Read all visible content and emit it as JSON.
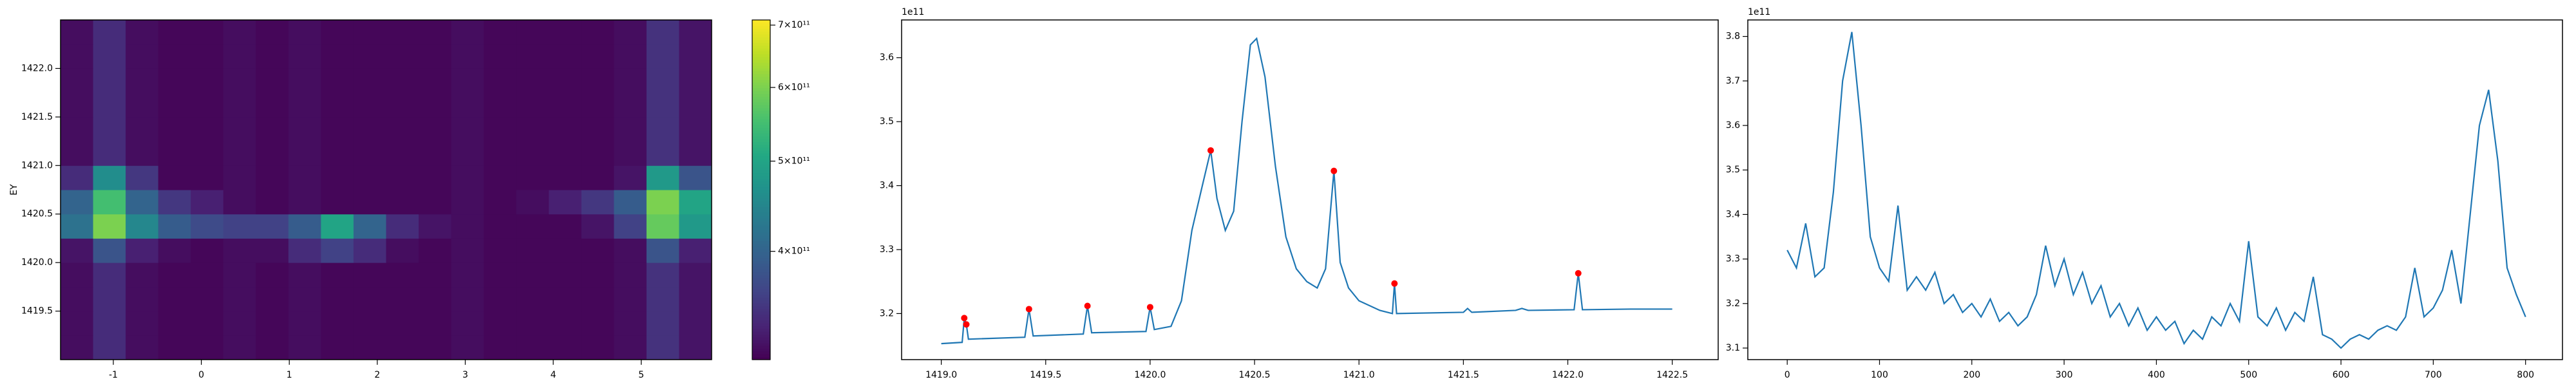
{
  "chart_data": [
    {
      "type": "heatmap",
      "ylabel": "EY",
      "xbins": [
        -1.6,
        -1.23,
        -0.86,
        -0.49,
        -0.12,
        0.25,
        0.62,
        0.99,
        1.36,
        1.73,
        2.1,
        2.47,
        2.84,
        3.21,
        3.58,
        3.95,
        4.32,
        4.69,
        5.06,
        5.43,
        5.8
      ],
      "ybins": [
        1419.0,
        1419.25,
        1419.5,
        1419.75,
        1420.0,
        1420.25,
        1420.5,
        1420.75,
        1421.0,
        1421.25,
        1421.5,
        1421.75,
        1422.0,
        1422.25,
        1422.5
      ],
      "z": [
        [
          315000000000.0,
          340000000000.0,
          315000000000.0,
          310000000000.0,
          310000000000.0,
          315000000000.0,
          310000000000.0,
          315000000000.0,
          310000000000.0,
          310000000000.0,
          310000000000.0,
          310000000000.0,
          315000000000.0,
          310000000000.0,
          310000000000.0,
          310000000000.0,
          310000000000.0,
          315000000000.0,
          345000000000.0,
          320000000000.0
        ],
        [
          315000000000.0,
          340000000000.0,
          315000000000.0,
          310000000000.0,
          310000000000.0,
          315000000000.0,
          310000000000.0,
          315000000000.0,
          310000000000.0,
          310000000000.0,
          310000000000.0,
          310000000000.0,
          315000000000.0,
          310000000000.0,
          310000000000.0,
          310000000000.0,
          310000000000.0,
          315000000000.0,
          345000000000.0,
          320000000000.0
        ],
        [
          315000000000.0,
          340000000000.0,
          315000000000.0,
          310000000000.0,
          310000000000.0,
          315000000000.0,
          310000000000.0,
          315000000000.0,
          310000000000.0,
          310000000000.0,
          310000000000.0,
          310000000000.0,
          315000000000.0,
          310000000000.0,
          310000000000.0,
          310000000000.0,
          310000000000.0,
          315000000000.0,
          345000000000.0,
          320000000000.0
        ],
        [
          315000000000.0,
          340000000000.0,
          315000000000.0,
          310000000000.0,
          310000000000.0,
          315000000000.0,
          310000000000.0,
          315000000000.0,
          310000000000.0,
          310000000000.0,
          310000000000.0,
          310000000000.0,
          315000000000.0,
          310000000000.0,
          310000000000.0,
          310000000000.0,
          310000000000.0,
          315000000000.0,
          345000000000.0,
          320000000000.0
        ],
        [
          320000000000.0,
          380000000000.0,
          330000000000.0,
          315000000000.0,
          310000000000.0,
          315000000000.0,
          315000000000.0,
          340000000000.0,
          360000000000.0,
          340000000000.0,
          315000000000.0,
          310000000000.0,
          315000000000.0,
          310000000000.0,
          310000000000.0,
          310000000000.0,
          310000000000.0,
          315000000000.0,
          380000000000.0,
          330000000000.0
        ],
        [
          420000000000.0,
          600000000000.0,
          450000000000.0,
          390000000000.0,
          370000000000.0,
          360000000000.0,
          360000000000.0,
          390000000000.0,
          500000000000.0,
          400000000000.0,
          340000000000.0,
          320000000000.0,
          315000000000.0,
          310000000000.0,
          310000000000.0,
          310000000000.0,
          320000000000.0,
          360000000000.0,
          580000000000.0,
          480000000000.0
        ],
        [
          400000000000.0,
          550000000000.0,
          400000000000.0,
          350000000000.0,
          330000000000.0,
          315000000000.0,
          310000000000.0,
          315000000000.0,
          310000000000.0,
          310000000000.0,
          310000000000.0,
          310000000000.0,
          315000000000.0,
          310000000000.0,
          315000000000.0,
          330000000000.0,
          350000000000.0,
          390000000000.0,
          600000000000.0,
          500000000000.0
        ],
        [
          340000000000.0,
          460000000000.0,
          350000000000.0,
          310000000000.0,
          310000000000.0,
          315000000000.0,
          310000000000.0,
          315000000000.0,
          310000000000.0,
          310000000000.0,
          310000000000.0,
          310000000000.0,
          315000000000.0,
          310000000000.0,
          310000000000.0,
          310000000000.0,
          310000000000.0,
          320000000000.0,
          480000000000.0,
          380000000000.0
        ],
        [
          315000000000.0,
          340000000000.0,
          315000000000.0,
          310000000000.0,
          310000000000.0,
          315000000000.0,
          310000000000.0,
          315000000000.0,
          310000000000.0,
          310000000000.0,
          310000000000.0,
          310000000000.0,
          315000000000.0,
          310000000000.0,
          310000000000.0,
          310000000000.0,
          310000000000.0,
          315000000000.0,
          345000000000.0,
          320000000000.0
        ],
        [
          315000000000.0,
          340000000000.0,
          315000000000.0,
          310000000000.0,
          310000000000.0,
          315000000000.0,
          310000000000.0,
          315000000000.0,
          310000000000.0,
          310000000000.0,
          310000000000.0,
          310000000000.0,
          315000000000.0,
          310000000000.0,
          310000000000.0,
          310000000000.0,
          310000000000.0,
          315000000000.0,
          345000000000.0,
          320000000000.0
        ],
        [
          315000000000.0,
          340000000000.0,
          315000000000.0,
          310000000000.0,
          310000000000.0,
          315000000000.0,
          310000000000.0,
          315000000000.0,
          310000000000.0,
          310000000000.0,
          310000000000.0,
          310000000000.0,
          315000000000.0,
          310000000000.0,
          310000000000.0,
          310000000000.0,
          310000000000.0,
          315000000000.0,
          345000000000.0,
          320000000000.0
        ],
        [
          315000000000.0,
          340000000000.0,
          315000000000.0,
          310000000000.0,
          310000000000.0,
          315000000000.0,
          310000000000.0,
          315000000000.0,
          310000000000.0,
          310000000000.0,
          310000000000.0,
          310000000000.0,
          315000000000.0,
          310000000000.0,
          310000000000.0,
          310000000000.0,
          310000000000.0,
          315000000000.0,
          345000000000.0,
          320000000000.0
        ],
        [
          315000000000.0,
          340000000000.0,
          315000000000.0,
          310000000000.0,
          310000000000.0,
          315000000000.0,
          310000000000.0,
          315000000000.0,
          310000000000.0,
          310000000000.0,
          310000000000.0,
          310000000000.0,
          315000000000.0,
          310000000000.0,
          310000000000.0,
          310000000000.0,
          310000000000.0,
          315000000000.0,
          345000000000.0,
          320000000000.0
        ],
        [
          315000000000.0,
          340000000000.0,
          315000000000.0,
          310000000000.0,
          310000000000.0,
          315000000000.0,
          310000000000.0,
          315000000000.0,
          310000000000.0,
          310000000000.0,
          310000000000.0,
          310000000000.0,
          315000000000.0,
          310000000000.0,
          310000000000.0,
          310000000000.0,
          310000000000.0,
          315000000000.0,
          345000000000.0,
          320000000000.0
        ]
      ],
      "xlim": [
        -1.6,
        5.8
      ],
      "ylim": [
        1419.0,
        1422.5
      ],
      "xticks": [
        -1,
        0,
        1,
        2,
        3,
        4,
        5
      ],
      "yticks": [
        1419.5,
        {
          "value": 1420,
          "label": "1420.0"
        },
        1420.5,
        {
          "value": 1421,
          "label": "1421.0"
        },
        1421.5,
        {
          "value": 1422,
          "label": "1422.0"
        }
      ],
      "cmap": "viridis",
      "clim": [
        306000000000.0,
        709000000000.0
      ],
      "color_log": true,
      "cticks": [
        {
          "value": 400000000000.0,
          "label": "4×10¹¹"
        },
        {
          "value": 500000000000.0,
          "label": "5×10¹¹"
        },
        {
          "value": 600000000000.0,
          "label": "6×10¹¹"
        },
        {
          "value": 700000000000.0,
          "label": "7×10¹¹"
        }
      ]
    },
    {
      "type": "line",
      "y_offset_label": "1e11",
      "xlim": [
        1418.81,
        1422.72
      ],
      "ylim": [
        3.128,
        3.659
      ],
      "xticks": [
        {
          "value": 1419,
          "label": "1419.0"
        },
        1419.5,
        {
          "value": 1420,
          "label": "1420.0"
        },
        1420.5,
        {
          "value": 1421,
          "label": "1421.0"
        },
        1421.5,
        {
          "value": 1422,
          "label": "1422.0"
        },
        1422.5
      ],
      "yticks": [
        3.2,
        3.3,
        3.4,
        3.5,
        3.6
      ],
      "series": [
        {
          "color": "#1f77b4",
          "style": "line",
          "x": [
            1419.0,
            1419.1,
            1419.11,
            1419.12,
            1419.13,
            1419.4,
            1419.42,
            1419.44,
            1419.68,
            1419.7,
            1419.72,
            1419.98,
            1420.0,
            1420.02,
            1420.1,
            1420.15,
            1420.2,
            1420.25,
            1420.29,
            1420.32,
            1420.36,
            1420.4,
            1420.44,
            1420.48,
            1420.51,
            1420.55,
            1420.6,
            1420.65,
            1420.7,
            1420.75,
            1420.8,
            1420.84,
            1420.88,
            1420.91,
            1420.95,
            1421.0,
            1421.1,
            1421.16,
            1421.17,
            1421.18,
            1421.5,
            1421.52,
            1421.54,
            1421.75,
            1421.78,
            1421.81,
            1422.03,
            1422.05,
            1422.07,
            1422.3,
            1422.5
          ],
          "values": [
            3.153,
            3.155,
            3.193,
            3.183,
            3.16,
            3.163,
            3.207,
            3.165,
            3.168,
            3.212,
            3.17,
            3.172,
            3.21,
            3.175,
            3.18,
            3.22,
            3.33,
            3.4,
            3.455,
            3.38,
            3.33,
            3.36,
            3.5,
            3.62,
            3.63,
            3.57,
            3.43,
            3.32,
            3.27,
            3.25,
            3.24,
            3.27,
            3.423,
            3.28,
            3.24,
            3.22,
            3.205,
            3.2,
            3.247,
            3.2,
            3.202,
            3.208,
            3.202,
            3.205,
            3.208,
            3.205,
            3.206,
            3.263,
            3.206,
            3.207,
            3.207
          ]
        },
        {
          "color": "#ff0000",
          "style": "markers",
          "x": [
            1419.11,
            1419.12,
            1419.42,
            1419.7,
            1420.0,
            1420.29,
            1420.88,
            1421.17,
            1422.05
          ],
          "values": [
            3.193,
            3.183,
            3.207,
            3.212,
            3.21,
            3.455,
            3.423,
            3.247,
            3.263
          ]
        }
      ]
    },
    {
      "type": "line",
      "y_offset_label": "1e11",
      "xlim": [
        -42.7,
        840
      ],
      "ylim": [
        3.074,
        3.837
      ],
      "xticks": [
        0,
        100,
        200,
        300,
        400,
        500,
        600,
        700,
        800
      ],
      "yticks": [
        3.1,
        3.2,
        3.3,
        3.4,
        3.5,
        3.6,
        3.7,
        3.8
      ],
      "series": [
        {
          "color": "#1f77b4",
          "style": "line",
          "x": [
            0,
            10,
            20,
            30,
            40,
            50,
            60,
            70,
            80,
            90,
            100,
            110,
            120,
            130,
            140,
            150,
            160,
            170,
            180,
            190,
            200,
            210,
            220,
            230,
            240,
            250,
            260,
            270,
            280,
            290,
            300,
            310,
            320,
            330,
            340,
            350,
            360,
            370,
            380,
            390,
            400,
            410,
            420,
            430,
            440,
            450,
            460,
            470,
            480,
            490,
            500,
            510,
            520,
            530,
            540,
            550,
            560,
            570,
            580,
            590,
            600,
            610,
            620,
            630,
            640,
            650,
            660,
            670,
            680,
            690,
            700,
            710,
            720,
            730,
            740,
            750,
            760,
            770,
            780,
            790,
            800
          ],
          "values": [
            3.32,
            3.28,
            3.38,
            3.26,
            3.28,
            3.45,
            3.7,
            3.81,
            3.6,
            3.35,
            3.28,
            3.25,
            3.42,
            3.23,
            3.26,
            3.23,
            3.27,
            3.2,
            3.22,
            3.18,
            3.2,
            3.17,
            3.21,
            3.16,
            3.18,
            3.15,
            3.17,
            3.22,
            3.33,
            3.24,
            3.3,
            3.22,
            3.27,
            3.2,
            3.24,
            3.17,
            3.2,
            3.15,
            3.19,
            3.14,
            3.17,
            3.14,
            3.16,
            3.11,
            3.14,
            3.12,
            3.17,
            3.15,
            3.2,
            3.16,
            3.34,
            3.17,
            3.15,
            3.19,
            3.14,
            3.18,
            3.16,
            3.26,
            3.13,
            3.12,
            3.1,
            3.12,
            3.13,
            3.12,
            3.14,
            3.15,
            3.14,
            3.17,
            3.28,
            3.17,
            3.19,
            3.23,
            3.32,
            3.2,
            3.4,
            3.6,
            3.68,
            3.52,
            3.28,
            3.22,
            3.17
          ]
        }
      ]
    }
  ]
}
